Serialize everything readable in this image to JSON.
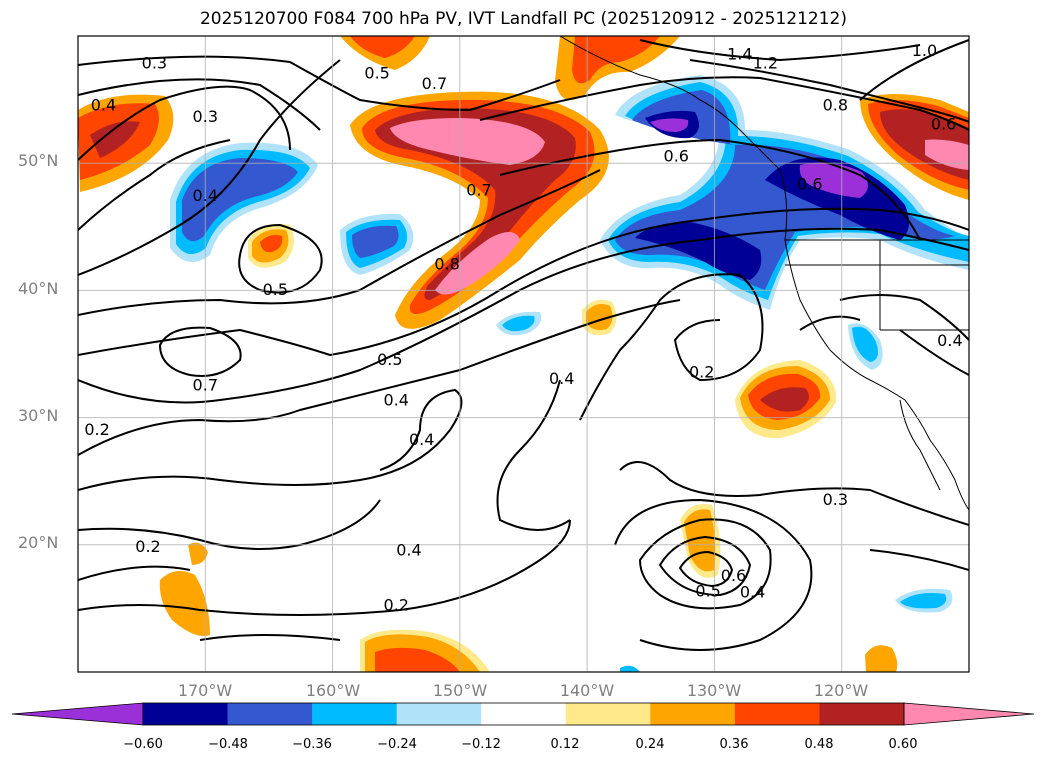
{
  "title": "2025120700 F084 700 hPa PV, IVT Landfall PC (2025120912 - 2025121212)",
  "map": {
    "lon_range": [
      -180,
      -110
    ],
    "lat_range": [
      10,
      60
    ],
    "lat_labels": [
      "50°N",
      "40°N",
      "30°N",
      "20°N"
    ],
    "lat_values": [
      50,
      40,
      30,
      20
    ],
    "lon_labels": [
      "170°W",
      "160°W",
      "150°W",
      "140°W",
      "130°W",
      "120°W"
    ],
    "lon_values": [
      -170,
      -160,
      -150,
      -140,
      -130,
      -120
    ],
    "contour_labels": [
      {
        "text": "0.3",
        "lon": -174,
        "lat": 57.8
      },
      {
        "text": "0.3",
        "lon": -170,
        "lat": 53.6
      },
      {
        "text": "0.4",
        "lon": -178,
        "lat": 54.5
      },
      {
        "text": "0.4",
        "lon": -170,
        "lat": 47.4
      },
      {
        "text": "0.5",
        "lon": -164.5,
        "lat": 40
      },
      {
        "text": "0.5",
        "lon": -156.5,
        "lat": 57
      },
      {
        "text": "0.7",
        "lon": -152,
        "lat": 56.2
      },
      {
        "text": "0.7",
        "lon": -148.5,
        "lat": 47.8
      },
      {
        "text": "0.7",
        "lon": -170,
        "lat": 32.5
      },
      {
        "text": "0.8",
        "lon": -151,
        "lat": 42
      },
      {
        "text": "0.6",
        "lon": -133,
        "lat": 50.5
      },
      {
        "text": "0.6",
        "lon": -122.5,
        "lat": 48.3
      },
      {
        "text": "0.6",
        "lon": -112,
        "lat": 53
      },
      {
        "text": "0.8",
        "lon": -120.5,
        "lat": 54.5
      },
      {
        "text": "1.4",
        "lon": -128,
        "lat": 58.5
      },
      {
        "text": "1.2",
        "lon": -126,
        "lat": 57.8
      },
      {
        "text": "1.0",
        "lon": -113.5,
        "lat": 58.8
      },
      {
        "text": "0.5",
        "lon": -155.5,
        "lat": 34.5
      },
      {
        "text": "0.4",
        "lon": -155,
        "lat": 31.3
      },
      {
        "text": "0.4",
        "lon": -153,
        "lat": 28.2
      },
      {
        "text": "0.4",
        "lon": -142,
        "lat": 33
      },
      {
        "text": "0.2",
        "lon": -178.5,
        "lat": 29
      },
      {
        "text": "0.2",
        "lon": -131,
        "lat": 33.5
      },
      {
        "text": "0.2",
        "lon": -174.5,
        "lat": 19.8
      },
      {
        "text": "0.4",
        "lon": -111.5,
        "lat": 36
      },
      {
        "text": "0.3",
        "lon": -120.5,
        "lat": 23.5
      },
      {
        "text": "0.4",
        "lon": -154,
        "lat": 19.5
      },
      {
        "text": "0.2",
        "lon": -155,
        "lat": 15.2
      },
      {
        "text": "0.6",
        "lon": -128.5,
        "lat": 17.5
      },
      {
        "text": "0.5",
        "lon": -130.5,
        "lat": 16.3
      },
      {
        "text": "0.4",
        "lon": -127,
        "lat": 16.2
      }
    ]
  },
  "colorbar": {
    "colors": [
      "#9b30d9",
      "#000096",
      "#3358d0",
      "#00bbff",
      "#b0e2fa",
      "#ffffff",
      "#ffe98b",
      "#ffa500",
      "#ff4500",
      "#b22222",
      "#ff88b0"
    ],
    "ticks": [
      "−0.60",
      "−0.48",
      "−0.36",
      "−0.24",
      "−0.12",
      "0.12",
      "0.24",
      "0.36",
      "0.48",
      "0.60"
    ]
  }
}
